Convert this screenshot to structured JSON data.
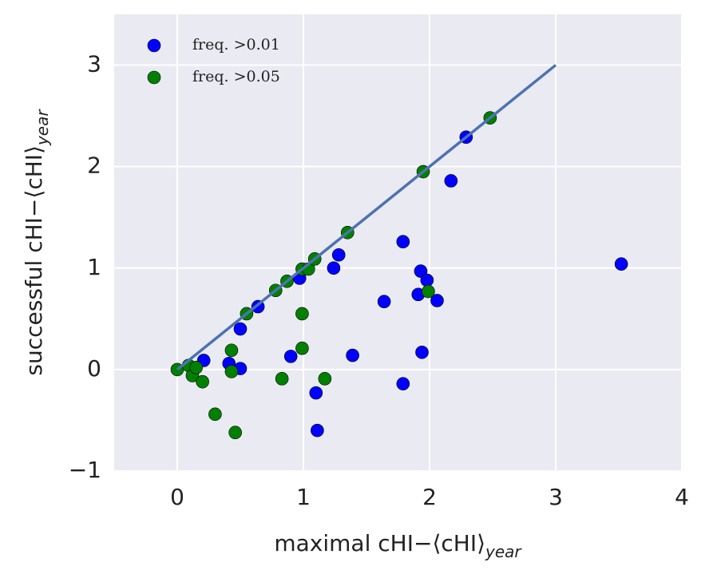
{
  "chart_data": {
    "type": "scatter",
    "x_label": "maximal cHI−⟨cHI⟩",
    "x_label_sub": "year",
    "y_label": "successful cHI−⟨cHI⟩",
    "y_label_sub": "year",
    "xlim": [
      -0.5,
      4
    ],
    "xticks": [
      0,
      1,
      2,
      3,
      4
    ],
    "ylim": [
      -1,
      3.5
    ],
    "yticks": [
      {
        "value": -1,
        "label": "−1"
      },
      0,
      1,
      2,
      3
    ],
    "grid": true,
    "legend": "upper left",
    "series": [
      {
        "name": "freq. >0.01",
        "color": "#0000ff",
        "x": [
          0.21,
          0.41,
          0.5,
          0.5,
          0.64,
          0.9,
          0.97,
          1.1,
          1.11,
          1.24,
          1.28,
          1.39,
          1.64,
          1.79,
          1.79,
          1.91,
          1.93,
          1.94,
          1.98,
          2.06,
          2.17,
          2.29,
          3.52
        ],
        "values": [
          0.09,
          0.06,
          0.01,
          0.4,
          0.62,
          0.13,
          0.9,
          -0.23,
          -0.6,
          1.0,
          1.13,
          0.14,
          0.67,
          1.26,
          -0.14,
          0.74,
          0.97,
          0.17,
          0.88,
          0.68,
          1.86,
          2.29,
          1.04
        ]
      },
      {
        "name": "freq. >0.05",
        "color": "#008000",
        "x": [
          0,
          0.09,
          0.12,
          0.15,
          0.2,
          0.3,
          0.43,
          0.43,
          0.46,
          0.55,
          0.78,
          0.83,
          0.87,
          0.99,
          0.99,
          0.99,
          1.04,
          1.09,
          1.17,
          1.35,
          1.95,
          1.99,
          2.48
        ],
        "values": [
          0,
          0.04,
          -0.06,
          0.02,
          -0.12,
          -0.44,
          0.19,
          -0.02,
          -0.62,
          0.55,
          0.78,
          -0.09,
          0.87,
          0.99,
          0.55,
          0.21,
          0.99,
          1.09,
          -0.09,
          1.35,
          1.95,
          0.77,
          2.48
        ]
      }
    ],
    "line": {
      "color": "#4c72b0",
      "x": [
        0,
        3
      ],
      "values": [
        0,
        3
      ]
    }
  }
}
